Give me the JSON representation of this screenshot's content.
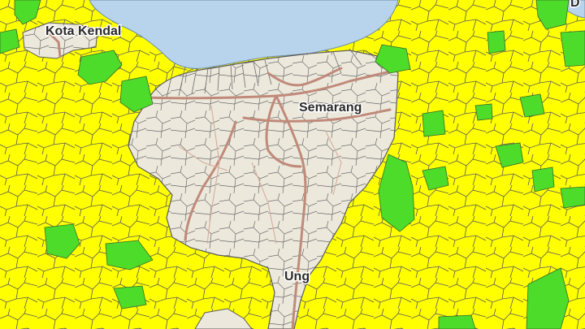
{
  "map": {
    "labels": {
      "kendal": "Kota Kendal",
      "semarang": "Semarang",
      "ungaran": "Ung",
      "corner": "D"
    },
    "colors": {
      "sea": "#b7d4ec",
      "yellow_zone": "#ffff00",
      "green_zone": "#4ddc2a",
      "city_area": "#ece9dc",
      "boundary": "#5a5a5a",
      "road": "#c08a7a"
    }
  }
}
